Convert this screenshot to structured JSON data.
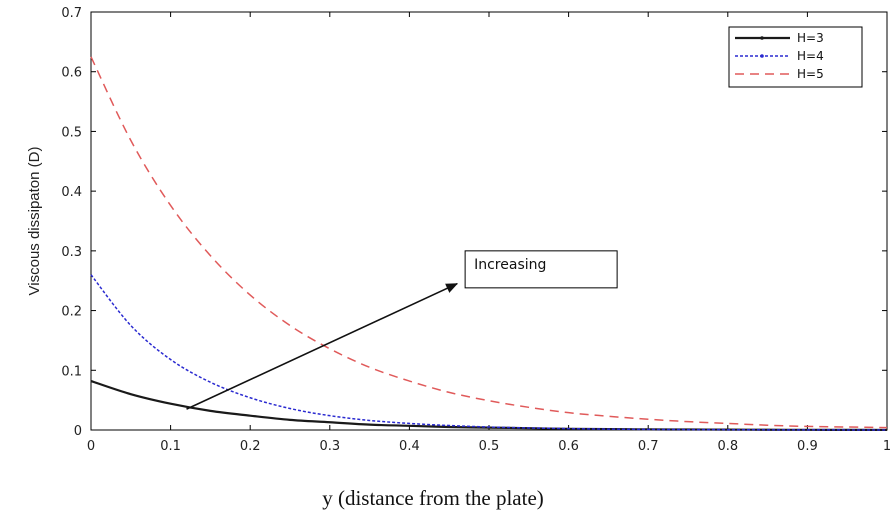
{
  "chart_data": {
    "type": "line",
    "title": "",
    "xlabel": "y (distance from the plate)",
    "ylabel": "Viscous dissipaton (D)",
    "xlim": [
      0,
      1
    ],
    "ylim": [
      0,
      0.7
    ],
    "xticks": [
      "0",
      "0.1",
      "0.2",
      "0.3",
      "0.4",
      "0.5",
      "0.6",
      "0.7",
      "0.8",
      "0.9",
      "1"
    ],
    "yticks": [
      "0",
      "0.1",
      "0.2",
      "0.3",
      "0.4",
      "0.5",
      "0.6",
      "0.7"
    ],
    "grid": false,
    "legend_position": "top-right",
    "x": [
      0,
      0.05,
      0.1,
      0.15,
      0.2,
      0.25,
      0.3,
      0.35,
      0.4,
      0.45,
      0.5,
      0.55,
      0.6,
      0.65,
      0.7,
      0.75,
      0.8,
      0.85,
      0.9,
      0.95,
      1.0
    ],
    "series": [
      {
        "name": "H=3",
        "color": "#1a1a1a",
        "style": "solid",
        "values": [
          0.082,
          0.06,
          0.044,
          0.032,
          0.024,
          0.017,
          0.013,
          0.009,
          0.007,
          0.005,
          0.004,
          0.003,
          0.002,
          0.0015,
          0.001,
          0.0008,
          0.0006,
          0.0004,
          0.0003,
          0.0002,
          0.0001
        ]
      },
      {
        "name": "H=4",
        "color": "#2a2ad0",
        "style": "dashdot",
        "values": [
          0.26,
          0.175,
          0.118,
          0.08,
          0.054,
          0.036,
          0.024,
          0.016,
          0.011,
          0.0075,
          0.005,
          0.0034,
          0.0023,
          0.0015,
          0.001,
          0.0007,
          0.0005,
          0.0003,
          0.0002,
          0.0001,
          0.0001
        ]
      },
      {
        "name": "H=5",
        "color": "#e05a5a",
        "style": "dashed",
        "values": [
          0.625,
          0.485,
          0.376,
          0.292,
          0.226,
          0.175,
          0.136,
          0.105,
          0.082,
          0.063,
          0.049,
          0.038,
          0.029,
          0.023,
          0.018,
          0.014,
          0.011,
          0.008,
          0.006,
          0.005,
          0.004
        ]
      }
    ],
    "annotation": {
      "text": "Increasing",
      "arrow_from": [
        0.12,
        0.035
      ],
      "arrow_to": [
        0.46,
        0.245
      ],
      "box_corner": [
        0.47,
        0.3
      ]
    }
  }
}
